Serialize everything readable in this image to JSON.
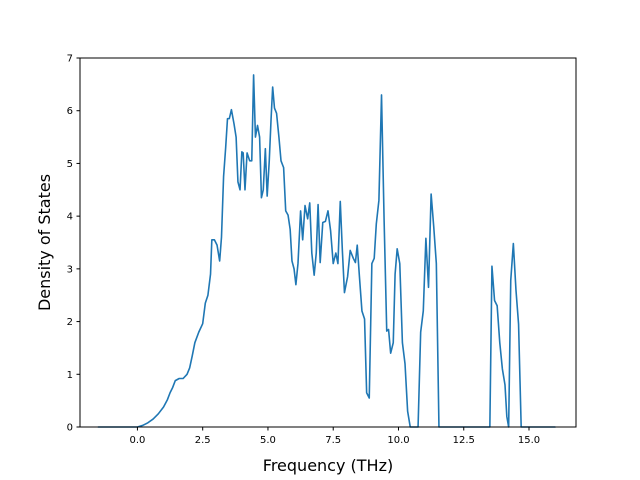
{
  "chart_data": {
    "type": "line",
    "title": "",
    "xlabel": "Frequency (THz)",
    "ylabel": "Density of States",
    "xlim": [
      -2.2,
      16.8
    ],
    "ylim": [
      0,
      7
    ],
    "grid": false,
    "xticks": [
      0,
      2.5,
      5,
      7.5,
      10,
      12.5,
      15
    ],
    "xtick_labels": [
      "0.0",
      "2.5",
      "5.0",
      "7.5",
      "10.0",
      "12.5",
      "15.0"
    ],
    "yticks": [
      0,
      1,
      2,
      3,
      4,
      5,
      6,
      7
    ],
    "ytick_labels": [
      "0",
      "1",
      "2",
      "3",
      "4",
      "5",
      "6",
      "7"
    ],
    "series": [
      {
        "color": "#1f77b4",
        "points": [
          [
            -1.5,
            0
          ],
          [
            -0.5,
            0
          ],
          [
            0.0,
            0.0
          ],
          [
            0.2,
            0.03
          ],
          [
            0.4,
            0.08
          ],
          [
            0.6,
            0.15
          ],
          [
            0.8,
            0.25
          ],
          [
            1.0,
            0.38
          ],
          [
            1.15,
            0.52
          ],
          [
            1.25,
            0.65
          ],
          [
            1.35,
            0.75
          ],
          [
            1.45,
            0.88
          ],
          [
            1.6,
            0.92
          ],
          [
            1.75,
            0.92
          ],
          [
            1.9,
            1.0
          ],
          [
            2.0,
            1.12
          ],
          [
            2.1,
            1.35
          ],
          [
            2.2,
            1.6
          ],
          [
            2.35,
            1.8
          ],
          [
            2.5,
            1.96
          ],
          [
            2.6,
            2.35
          ],
          [
            2.7,
            2.5
          ],
          [
            2.8,
            2.9
          ],
          [
            2.85,
            3.55
          ],
          [
            2.95,
            3.55
          ],
          [
            3.05,
            3.45
          ],
          [
            3.15,
            3.15
          ],
          [
            3.22,
            3.6
          ],
          [
            3.3,
            4.75
          ],
          [
            3.38,
            5.3
          ],
          [
            3.45,
            5.85
          ],
          [
            3.52,
            5.85
          ],
          [
            3.6,
            6.02
          ],
          [
            3.7,
            5.75
          ],
          [
            3.78,
            5.5
          ],
          [
            3.85,
            4.65
          ],
          [
            3.93,
            4.5
          ],
          [
            4.0,
            5.22
          ],
          [
            4.05,
            5.2
          ],
          [
            4.12,
            4.5
          ],
          [
            4.2,
            5.2
          ],
          [
            4.3,
            5.05
          ],
          [
            4.38,
            5.05
          ],
          [
            4.45,
            6.68
          ],
          [
            4.52,
            5.5
          ],
          [
            4.6,
            5.72
          ],
          [
            4.68,
            5.5
          ],
          [
            4.75,
            4.35
          ],
          [
            4.82,
            4.5
          ],
          [
            4.9,
            5.28
          ],
          [
            4.97,
            4.38
          ],
          [
            5.05,
            5.05
          ],
          [
            5.12,
            5.85
          ],
          [
            5.18,
            6.45
          ],
          [
            5.25,
            6.05
          ],
          [
            5.33,
            5.95
          ],
          [
            5.42,
            5.5
          ],
          [
            5.5,
            5.05
          ],
          [
            5.6,
            4.92
          ],
          [
            5.68,
            4.1
          ],
          [
            5.77,
            4.02
          ],
          [
            5.85,
            3.75
          ],
          [
            5.92,
            3.15
          ],
          [
            6.0,
            3.0
          ],
          [
            6.07,
            2.7
          ],
          [
            6.15,
            3.1
          ],
          [
            6.25,
            4.1
          ],
          [
            6.33,
            3.55
          ],
          [
            6.42,
            4.2
          ],
          [
            6.52,
            3.95
          ],
          [
            6.6,
            4.25
          ],
          [
            6.68,
            3.3
          ],
          [
            6.77,
            2.88
          ],
          [
            6.85,
            3.3
          ],
          [
            6.92,
            4.22
          ],
          [
            7.0,
            3.12
          ],
          [
            7.1,
            3.88
          ],
          [
            7.2,
            3.9
          ],
          [
            7.3,
            4.1
          ],
          [
            7.4,
            3.72
          ],
          [
            7.5,
            3.1
          ],
          [
            7.6,
            3.3
          ],
          [
            7.68,
            3.1
          ],
          [
            7.77,
            4.28
          ],
          [
            7.85,
            3.35
          ],
          [
            7.93,
            2.55
          ],
          [
            8.05,
            2.85
          ],
          [
            8.15,
            3.35
          ],
          [
            8.27,
            3.2
          ],
          [
            8.35,
            3.12
          ],
          [
            8.42,
            3.45
          ],
          [
            8.5,
            2.88
          ],
          [
            8.6,
            2.2
          ],
          [
            8.7,
            2.05
          ],
          [
            8.78,
            0.65
          ],
          [
            8.88,
            0.55
          ],
          [
            8.98,
            3.1
          ],
          [
            9.07,
            3.2
          ],
          [
            9.15,
            3.85
          ],
          [
            9.25,
            4.3
          ],
          [
            9.35,
            6.3
          ],
          [
            9.45,
            3.9
          ],
          [
            9.55,
            1.82
          ],
          [
            9.62,
            1.85
          ],
          [
            9.7,
            1.4
          ],
          [
            9.8,
            1.6
          ],
          [
            9.87,
            2.9
          ],
          [
            9.95,
            3.38
          ],
          [
            10.05,
            3.1
          ],
          [
            10.15,
            1.6
          ],
          [
            10.25,
            1.2
          ],
          [
            10.35,
            0.3
          ],
          [
            10.45,
            0.0
          ],
          [
            10.75,
            0.0
          ],
          [
            10.85,
            1.8
          ],
          [
            10.95,
            2.2
          ],
          [
            11.05,
            3.58
          ],
          [
            11.15,
            2.65
          ],
          [
            11.25,
            4.42
          ],
          [
            11.35,
            3.8
          ],
          [
            11.45,
            3.1
          ],
          [
            11.55,
            0.0
          ],
          [
            13.5,
            0.0
          ],
          [
            13.58,
            3.05
          ],
          [
            13.68,
            2.4
          ],
          [
            13.78,
            2.3
          ],
          [
            13.88,
            1.6
          ],
          [
            13.98,
            1.1
          ],
          [
            14.08,
            0.8
          ],
          [
            14.15,
            0.2
          ],
          [
            14.22,
            0.0
          ],
          [
            14.3,
            2.78
          ],
          [
            14.4,
            3.48
          ],
          [
            14.5,
            2.6
          ],
          [
            14.6,
            1.95
          ],
          [
            14.7,
            0.0
          ],
          [
            16.0,
            0.0
          ]
        ]
      }
    ]
  }
}
